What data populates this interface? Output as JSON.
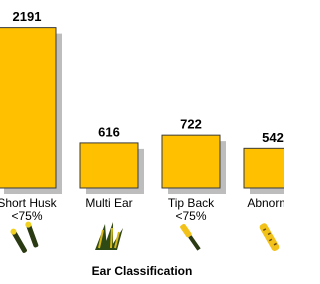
{
  "chart_data": {
    "type": "bar",
    "x_label": "Ear Classification",
    "categories": [
      [
        "Short Husk",
        "<75%"
      ],
      [
        "Multi Ear"
      ],
      [
        "Tip Back",
        "<75%"
      ],
      [
        "Abnormal"
      ]
    ],
    "values": [
      2191,
      616,
      722,
      542
    ],
    "color": "#ffc000",
    "ylim": [
      0,
      2500
    ]
  }
}
